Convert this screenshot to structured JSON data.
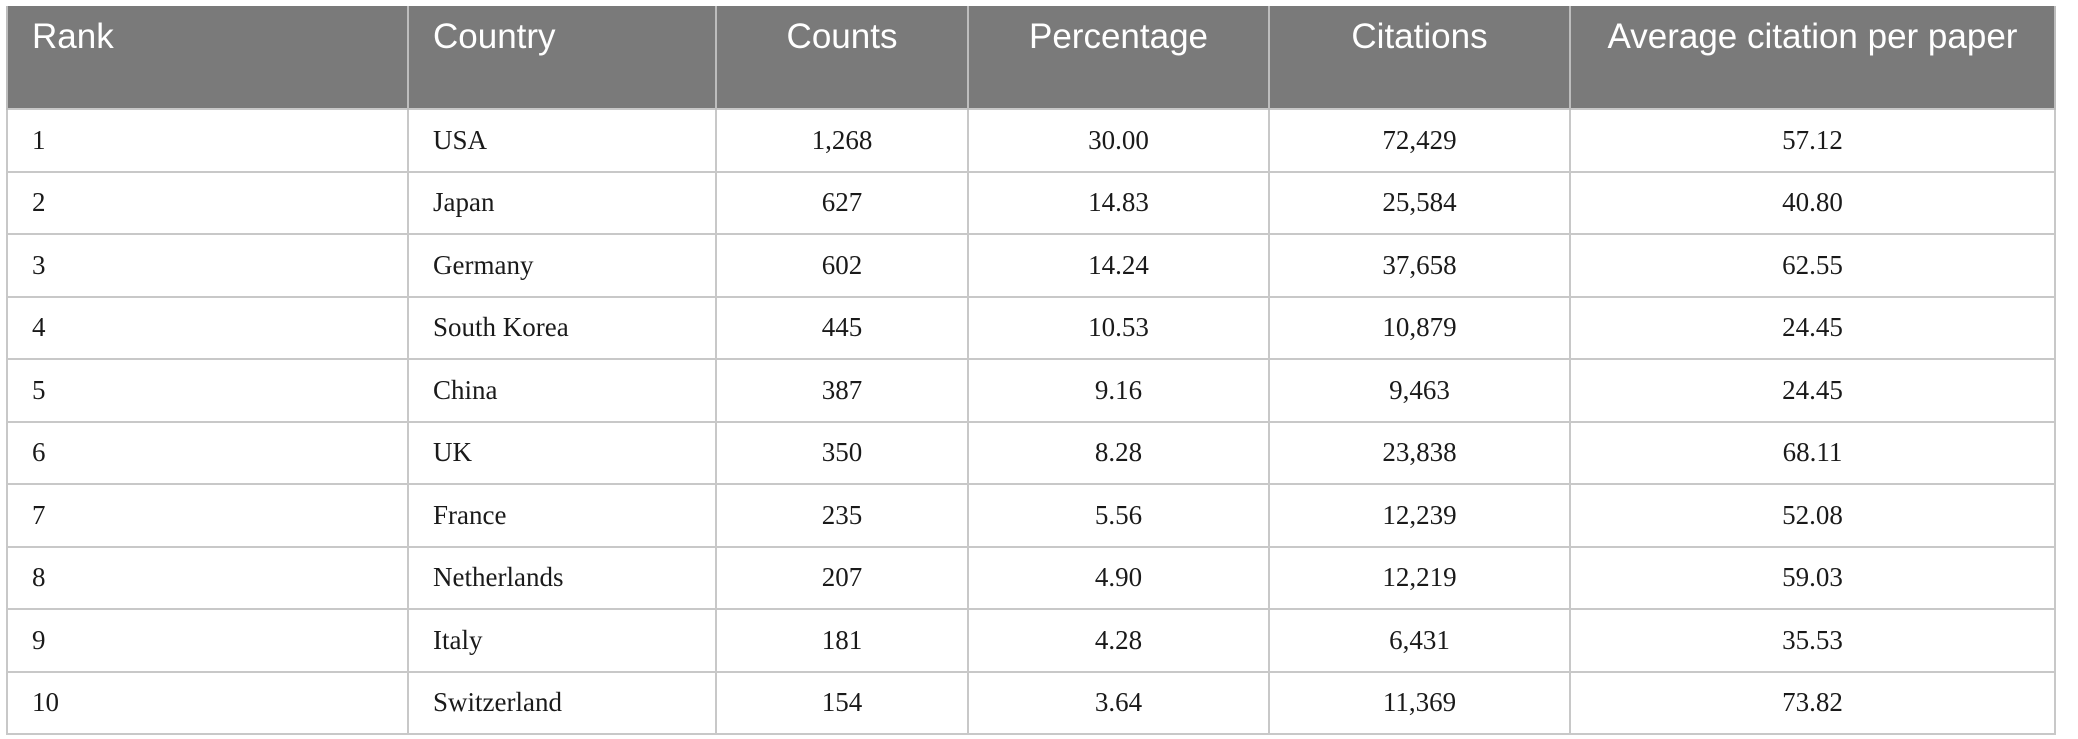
{
  "table": {
    "headers": {
      "rank": "Rank",
      "country": "Country",
      "counts": "Counts",
      "percentage": "Percentage",
      "citations": "Citations",
      "avg": "Average citation per paper"
    },
    "rows": [
      {
        "rank": "1",
        "country": "USA",
        "counts": "1,268",
        "percentage": "30.00",
        "citations": "72,429",
        "avg": "57.12"
      },
      {
        "rank": "2",
        "country": "Japan",
        "counts": "627",
        "percentage": "14.83",
        "citations": "25,584",
        "avg": "40.80"
      },
      {
        "rank": "3",
        "country": "Germany",
        "counts": "602",
        "percentage": "14.24",
        "citations": "37,658",
        "avg": "62.55"
      },
      {
        "rank": "4",
        "country": "South Korea",
        "counts": "445",
        "percentage": "10.53",
        "citations": "10,879",
        "avg": "24.45"
      },
      {
        "rank": "5",
        "country": "China",
        "counts": "387",
        "percentage": "9.16",
        "citations": "9,463",
        "avg": "24.45"
      },
      {
        "rank": "6",
        "country": "UK",
        "counts": "350",
        "percentage": "8.28",
        "citations": "23,838",
        "avg": "68.11"
      },
      {
        "rank": "7",
        "country": "France",
        "counts": "235",
        "percentage": "5.56",
        "citations": "12,239",
        "avg": "52.08"
      },
      {
        "rank": "8",
        "country": "Netherlands",
        "counts": "207",
        "percentage": "4.90",
        "citations": "12,219",
        "avg": "59.03"
      },
      {
        "rank": "9",
        "country": "Italy",
        "counts": "181",
        "percentage": "4.28",
        "citations": "6,431",
        "avg": "35.53"
      },
      {
        "rank": "10",
        "country": "Switzerland",
        "counts": "154",
        "percentage": "3.64",
        "citations": "11,369",
        "avg": "73.82"
      }
    ]
  },
  "colors": {
    "header_bg": "#7a7a7a",
    "header_text": "#ffffff",
    "grid": "#c8c8c8"
  }
}
